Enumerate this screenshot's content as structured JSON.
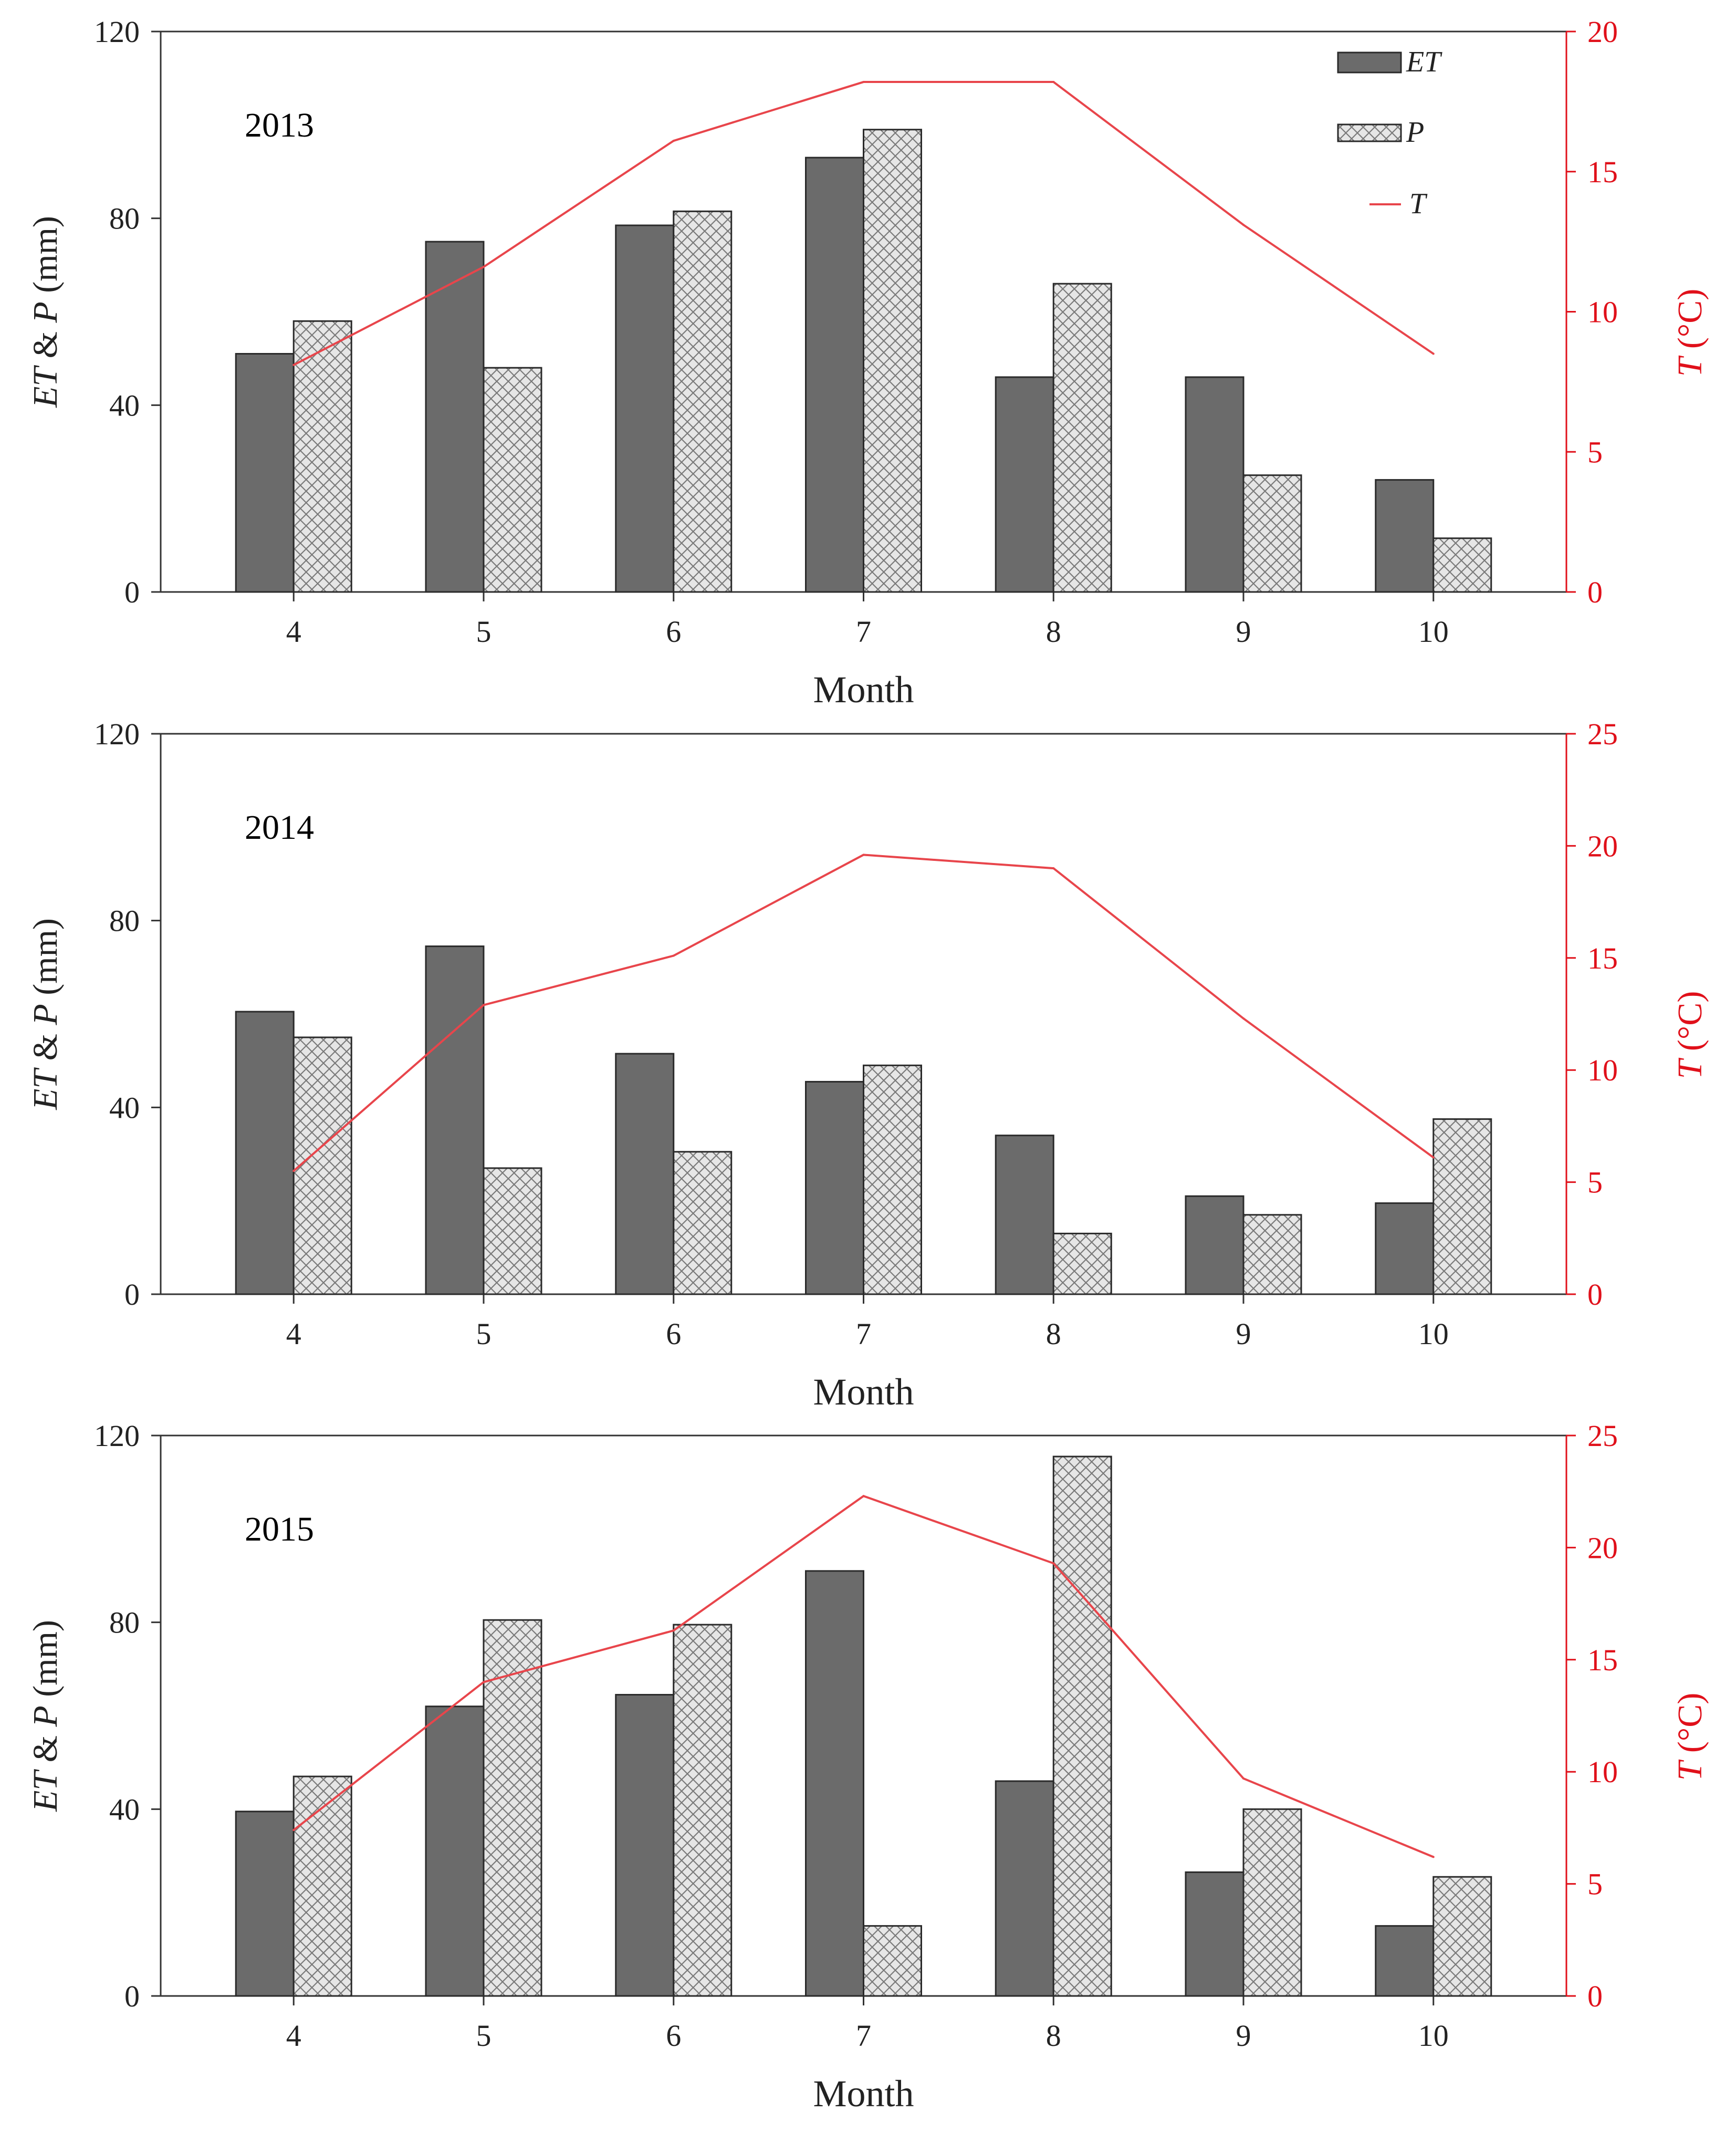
{
  "colors": {
    "et_fill": "#6b6b6b",
    "p_fill": "#e6e6e6",
    "p_pattern": "#7a7a7a",
    "t_line": "#e8454b",
    "right_axis": "#e0101a",
    "axis": "#333333"
  },
  "legend": {
    "placement": "top-right",
    "et": "ET",
    "p": "P",
    "t": "T"
  },
  "chart_data": [
    {
      "type": "bar",
      "year_label": "2013",
      "categories": [
        "4",
        "5",
        "6",
        "7",
        "8",
        "9",
        "10"
      ],
      "xlabel": "Month",
      "ylabel": "ET & P (mm)",
      "ylabel_right": "T (°C)",
      "ylim": [
        0,
        120
      ],
      "yticks": [
        0,
        40,
        80,
        120
      ],
      "ylim_right": [
        0,
        20
      ],
      "yticks_right": [
        0,
        5,
        10,
        15,
        20
      ],
      "grid": false,
      "series": [
        {
          "name": "ET",
          "kind": "bar",
          "axis": "left",
          "values": [
            51,
            75,
            78.5,
            93,
            46,
            46,
            24
          ]
        },
        {
          "name": "P",
          "kind": "bar",
          "axis": "left",
          "values": [
            58,
            48,
            81.5,
            99,
            66,
            25,
            11.5
          ]
        },
        {
          "name": "T",
          "kind": "line",
          "axis": "right",
          "values": [
            8.1,
            11.6,
            16.1,
            18.2,
            18.2,
            13.1,
            8.5
          ]
        }
      ]
    },
    {
      "type": "bar",
      "year_label": "2014",
      "categories": [
        "4",
        "5",
        "6",
        "7",
        "8",
        "9",
        "10"
      ],
      "xlabel": "Month",
      "ylabel": "ET & P (mm)",
      "ylabel_right": "T (°C)",
      "ylim": [
        0,
        120
      ],
      "yticks": [
        0,
        40,
        80,
        120
      ],
      "ylim_right": [
        0,
        25
      ],
      "yticks_right": [
        0,
        5,
        10,
        15,
        20,
        25
      ],
      "grid": false,
      "series": [
        {
          "name": "ET",
          "kind": "bar",
          "axis": "left",
          "values": [
            60.5,
            74.5,
            51.5,
            45.5,
            34,
            21,
            19.5
          ]
        },
        {
          "name": "P",
          "kind": "bar",
          "axis": "left",
          "values": [
            55,
            27,
            30.5,
            49,
            13,
            17,
            37.5
          ]
        },
        {
          "name": "T",
          "kind": "line",
          "axis": "right",
          "values": [
            5.5,
            12.9,
            15.1,
            19.6,
            19,
            12.3,
            6.1
          ]
        }
      ]
    },
    {
      "type": "bar",
      "year_label": "2015",
      "categories": [
        "4",
        "5",
        "6",
        "7",
        "8",
        "9",
        "10"
      ],
      "xlabel": "Month",
      "ylabel": "ET & P (mm)",
      "ylabel_right": "T (°C)",
      "ylim": [
        0,
        120
      ],
      "yticks": [
        0,
        40,
        80,
        120
      ],
      "ylim_right": [
        0,
        25
      ],
      "yticks_right": [
        0,
        5,
        10,
        15,
        20,
        25
      ],
      "grid": false,
      "series": [
        {
          "name": "ET",
          "kind": "bar",
          "axis": "left",
          "values": [
            39.5,
            62,
            64.5,
            91,
            46,
            26.5,
            15
          ]
        },
        {
          "name": "P",
          "kind": "bar",
          "axis": "left",
          "values": [
            47,
            80.5,
            79.5,
            15,
            115.5,
            40,
            25.5
          ]
        },
        {
          "name": "T",
          "kind": "line",
          "axis": "right",
          "values": [
            7.4,
            14,
            16.3,
            22.3,
            19.3,
            9.7,
            6.2
          ]
        }
      ]
    }
  ]
}
